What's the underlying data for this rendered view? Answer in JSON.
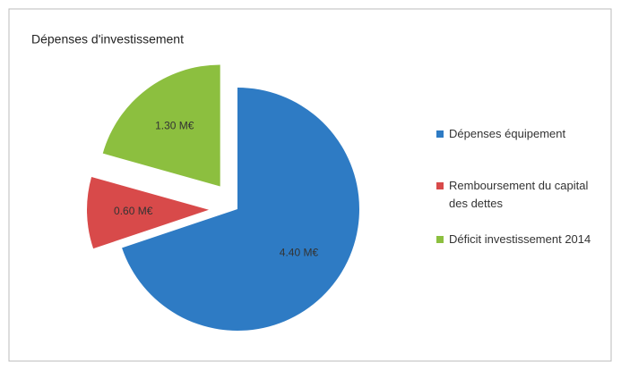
{
  "chart_data": {
    "type": "pie",
    "title": "Dépenses d'investissement",
    "categories": [
      "Dépenses équipement",
      "Remboursement du capital des dettes",
      "Déficit investissement 2014"
    ],
    "values": [
      4.4,
      0.6,
      1.3
    ],
    "value_labels": [
      "4.40 M€",
      "0.60 M€",
      "1.30 M€"
    ],
    "colors": [
      "#2e7bc4",
      "#d84a4a",
      "#8cbf3f"
    ],
    "legend": "right"
  }
}
